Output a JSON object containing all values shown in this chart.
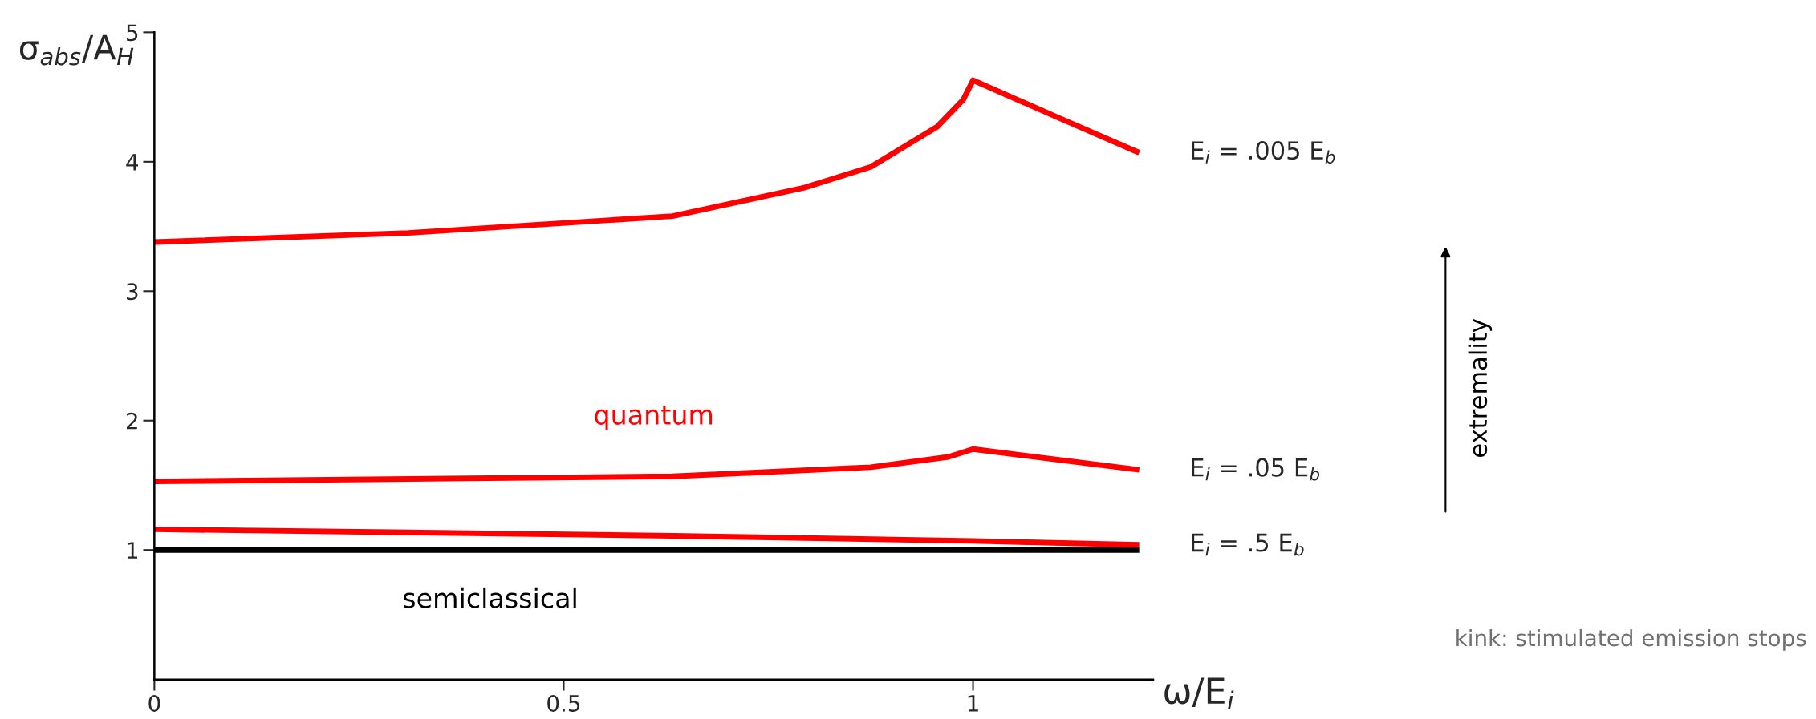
{
  "chart_data": {
    "type": "line",
    "xlabel": "ω/E$_{i}$",
    "ylabel": "σ$_{abs}$/A$_{H}$",
    "xlim": [
      0,
      1.22
    ],
    "ylim": [
      0,
      5
    ],
    "xticks": [
      0,
      0.5,
      1
    ],
    "yticks": [
      1,
      2,
      3,
      4,
      5
    ],
    "grid": false,
    "legend": false,
    "line_style": "solid",
    "marker": "none",
    "series": [
      {
        "name": "E$_{i}$ = .005 E$_{b}$",
        "color": "#ff0000",
        "x": [
          0,
          0.31,
          0.633,
          0.794,
          0.875,
          0.956,
          0.988,
          1.0,
          1.101,
          1.203
        ],
        "values": [
          3.38,
          3.45,
          3.58,
          3.8,
          3.96,
          4.27,
          4.48,
          4.63,
          4.35,
          4.07
        ]
      },
      {
        "name": "E$_{i}$ = .05 E$_{b}$",
        "color": "#ff0000",
        "x": [
          0,
          0.633,
          0.875,
          0.97,
          1.0,
          1.203
        ],
        "values": [
          1.53,
          1.57,
          1.64,
          1.72,
          1.78,
          1.62
        ]
      },
      {
        "name": "E$_{i}$ = .5 E$_{b}$",
        "color": "#ff0000",
        "x": [
          0,
          0.633,
          1.0,
          1.203
        ],
        "values": [
          1.16,
          1.11,
          1.07,
          1.04
        ]
      },
      {
        "color": "#000000",
        "x": [
          0,
          1.203
        ],
        "values": [
          1,
          1
        ]
      }
    ],
    "annotations": [
      "quantum",
      "semiclassical",
      "extremality",
      "kink: stimulated emission stops"
    ]
  }
}
